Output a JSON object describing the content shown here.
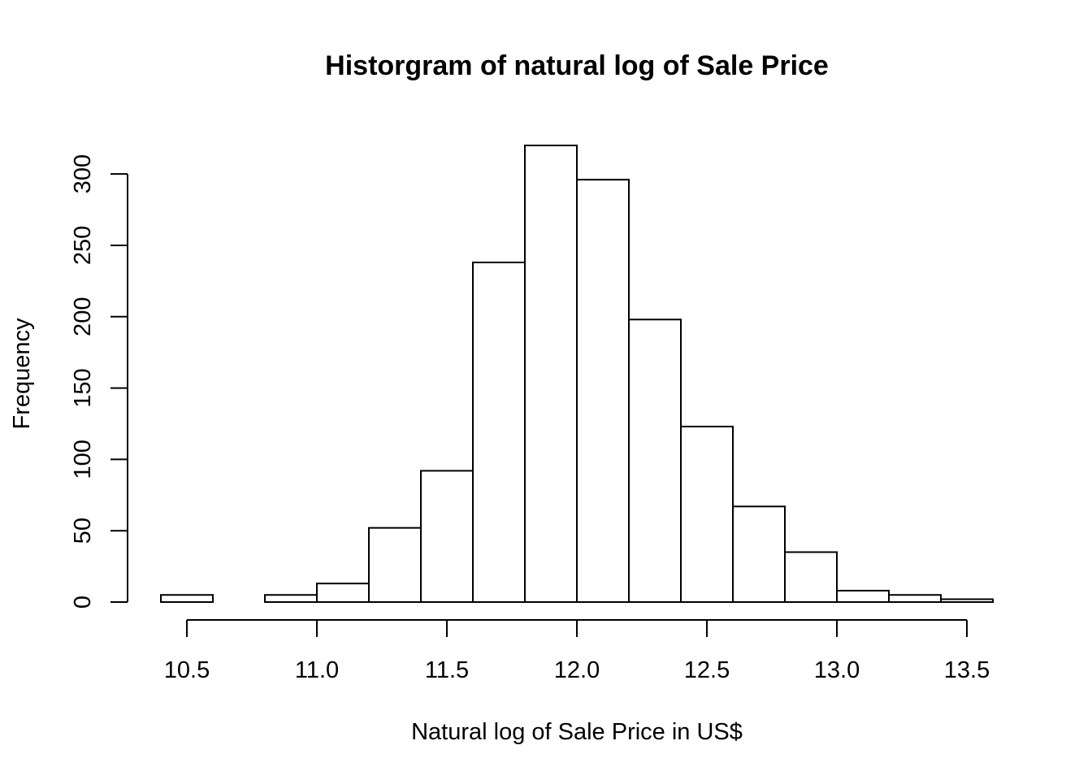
{
  "chart_data": {
    "type": "bar",
    "subtype": "histogram",
    "title": "Historgram of natural log of Sale Price",
    "xlabel": "Natural log of Sale Price in US$",
    "ylabel": "Frequency",
    "bin_edges": [
      10.4,
      10.6,
      10.8,
      11.0,
      11.2,
      11.4,
      11.6,
      11.8,
      12.0,
      12.2,
      12.4,
      12.6,
      12.8,
      13.0,
      13.2,
      13.4,
      13.6
    ],
    "values": [
      5,
      0,
      5,
      13,
      52,
      92,
      238,
      320,
      296,
      198,
      123,
      67,
      35,
      8,
      5,
      2
    ],
    "xlim": [
      10.4,
      13.6
    ],
    "ylim": [
      0,
      320
    ],
    "x_ticks": [
      10.5,
      11.0,
      11.5,
      12.0,
      12.5,
      13.0,
      13.5
    ],
    "x_tick_labels": [
      "10.5",
      "11.0",
      "11.5",
      "12.0",
      "12.5",
      "13.0",
      "13.5"
    ],
    "y_ticks": [
      0,
      50,
      100,
      150,
      200,
      250,
      300
    ],
    "y_tick_labels": [
      "0",
      "50",
      "100",
      "150",
      "200",
      "250",
      "300"
    ],
    "grid": false,
    "legend": "none",
    "colors": {
      "bar_fill": "#ffffff",
      "bar_stroke": "#000000",
      "background": "#ffffff"
    }
  }
}
